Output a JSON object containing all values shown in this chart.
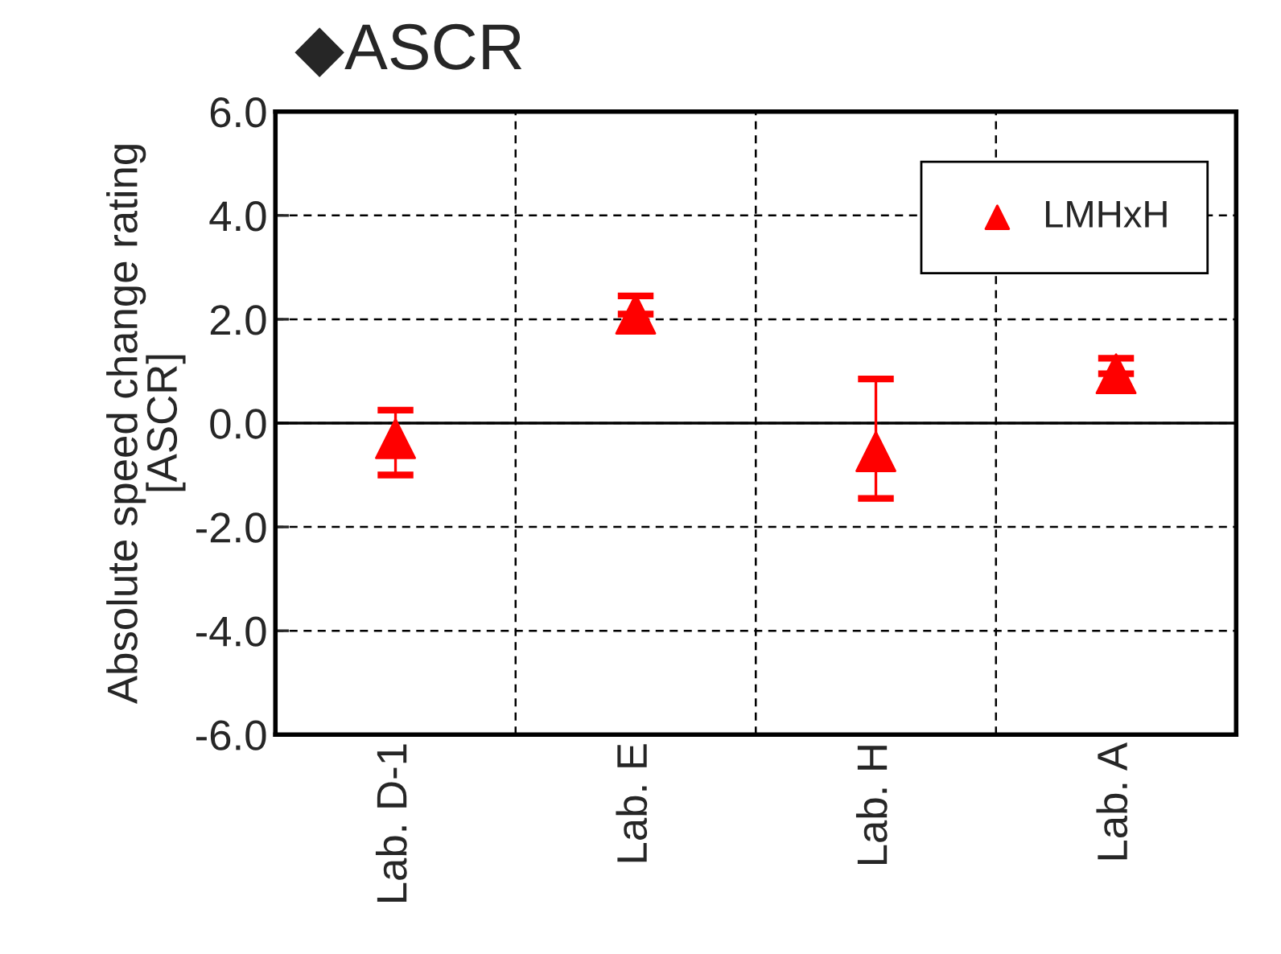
{
  "chart_data": {
    "type": "scatter",
    "title": "◆ASCR",
    "ylabel": "Absolute speed change rating\n[ASCR]",
    "categories": [
      "Lab. D-1",
      "Lab. E",
      "Lab. H",
      "Lab. A"
    ],
    "series": [
      {
        "name": "LMHxH",
        "color": "#ff0000",
        "values": [
          -0.3,
          2.1,
          -0.55,
          0.95
        ],
        "errors": [
          [
            -1.0,
            0.25
          ],
          [
            2.1,
            2.45
          ],
          [
            -1.45,
            0.85
          ],
          [
            0.95,
            1.25
          ]
        ]
      }
    ],
    "ylim": [
      -6,
      6
    ],
    "yticks": [
      {
        "value": -6,
        "label": "-6.0"
      },
      {
        "value": -4,
        "label": "-4.0"
      },
      {
        "value": -2,
        "label": "-2.0"
      },
      {
        "value": 0,
        "label": "0.0"
      },
      {
        "value": 2,
        "label": "2.0"
      },
      {
        "value": 4,
        "label": "4.0"
      },
      {
        "value": 6,
        "label": "6.0"
      }
    ],
    "ref_lines": [
      {
        "axis": "y",
        "value": 0,
        "color": "#000000",
        "line_style": "solid"
      }
    ],
    "grid": true,
    "legend": "top right",
    "marker": "triangle"
  }
}
